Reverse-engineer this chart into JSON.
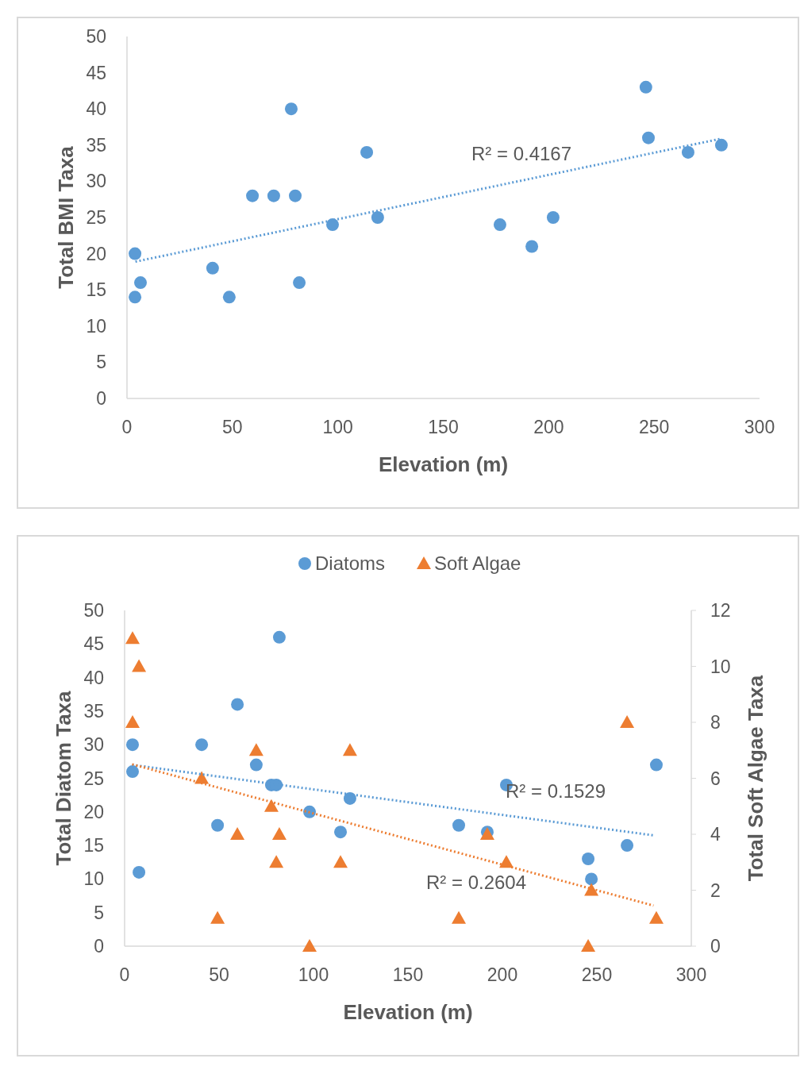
{
  "chart_data": [
    {
      "type": "scatter",
      "xlabel": "Elevation (m)",
      "ylabel": "Total BMI Taxa",
      "xlim": [
        0,
        300
      ],
      "xticks": [
        0,
        50,
        100,
        150,
        200,
        250,
        300
      ],
      "ylim": [
        0,
        50
      ],
      "yticks": [
        0,
        5,
        10,
        15,
        20,
        25,
        30,
        35,
        40,
        45,
        50
      ],
      "x": [
        3.8,
        3.8,
        6.4,
        40.6,
        48.5,
        59.5,
        69.6,
        77.9,
        79.8,
        81.7,
        97.5,
        113.7,
        118.9,
        176.9,
        192,
        202.1,
        246.1,
        247.3,
        266.1,
        281.9
      ],
      "series": [
        {
          "color": "#5b9bd5",
          "marker": "circle",
          "values": [
            20,
            14,
            16,
            18,
            14,
            28,
            28,
            40,
            28,
            16,
            24,
            34,
            25,
            24,
            21,
            25,
            43,
            36,
            34,
            35
          ]
        },
        {
          "type": "line",
          "color": "#5b9bd5",
          "line_style": "dotted",
          "x": [
            4,
            282
          ],
          "values": [
            18.9,
            35.9
          ]
        }
      ],
      "annotations": [
        "R² = 0.4167"
      ]
    },
    {
      "type": "scatter",
      "xlabel": "Elevation (m)",
      "ylabel": "Total Diatom Taxa",
      "y2label": "Total Soft Algae Taxa",
      "xlim": [
        0,
        300
      ],
      "xticks": [
        0,
        50,
        100,
        150,
        200,
        250,
        300
      ],
      "ylim": [
        0,
        50
      ],
      "yticks": [
        0,
        5,
        10,
        15,
        20,
        25,
        30,
        35,
        40,
        45,
        50
      ],
      "y2lim": [
        0,
        12
      ],
      "y2ticks": [
        0,
        2,
        4,
        6,
        8,
        10,
        12
      ],
      "legend": "top",
      "series": [
        {
          "name": "Diatoms",
          "color": "#5b9bd5",
          "marker": "circle",
          "x": [
            4.2,
            4.2,
            7.6,
            40.8,
            49.2,
            59.7,
            69.7,
            77.7,
            80.3,
            81.9,
            97.9,
            114.3,
            119.3,
            176.9,
            192,
            202.1,
            245.4,
            247.1,
            266,
            281.5
          ],
          "values": [
            30,
            26,
            11,
            30,
            18,
            36,
            27,
            24,
            24,
            46,
            20,
            17,
            22,
            18,
            17,
            24,
            13,
            10,
            15,
            27
          ]
        },
        {
          "name": "Soft Algae",
          "axis": "y2",
          "color": "#ed7d31",
          "marker": "triangle",
          "x": [
            4.2,
            7.6,
            4.2,
            69.7,
            119.3,
            40.8,
            77.7,
            59.7,
            81.9,
            192,
            80.3,
            114.3,
            202.1,
            247.1,
            266,
            49.2,
            176.9,
            281.5,
            97.9,
            245.4
          ],
          "values": [
            11,
            10,
            8,
            7,
            7,
            6,
            5,
            4,
            4,
            4,
            3,
            3,
            3,
            2,
            8,
            1,
            1,
            1,
            0,
            0
          ]
        },
        {
          "type": "line",
          "color": "#5b9bd5",
          "line_style": "dotted",
          "x": [
            4,
            280
          ],
          "values": [
            27,
            16.5
          ]
        },
        {
          "type": "line",
          "axis": "y2",
          "color": "#ed7d31",
          "line_style": "dotted",
          "x": [
            4,
            280
          ],
          "values": [
            6.5,
            1.45
          ]
        }
      ],
      "annotations": [
        "R² = 0.1529",
        "R² = 0.2604"
      ]
    }
  ]
}
